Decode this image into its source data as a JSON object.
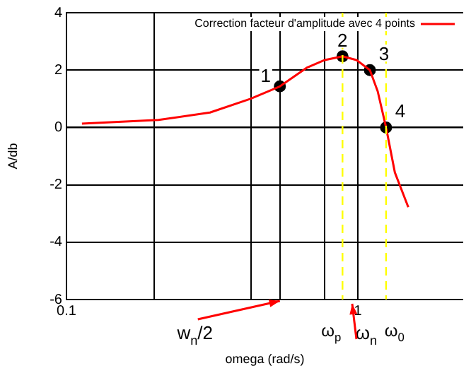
{
  "chart_data": {
    "type": "line",
    "xlabel": "omega (rad/s)",
    "ylabel": "A/db",
    "log": "x",
    "xlim": [
      0.1,
      2.3
    ],
    "xticks": [
      0.1,
      {
        "value": 0.2,
        "label": null
      },
      {
        "value": 0.43,
        "label": null
      },
      {
        "value": 0.54,
        "label": null
      },
      {
        "value": 0.77,
        "label": null
      },
      1
    ],
    "ylim": [
      -6,
      4
    ],
    "yticks": [
      -6,
      -4,
      -2,
      0,
      2,
      4
    ],
    "grid": true,
    "legend": "top right",
    "series": [
      {
        "name": "Correction facteur d'amplitude avec 4 points",
        "color": "#ff0000",
        "marker": "none",
        "x": [
          0.113,
          0.207,
          0.311,
          0.428,
          0.54,
          0.67,
          0.77,
          0.886,
          0.99,
          1.1,
          1.17,
          1.25,
          1.34,
          1.49
        ],
        "values": [
          0.13,
          0.26,
          0.52,
          1.0,
          1.43,
          2.09,
          2.35,
          2.48,
          2.35,
          2.0,
          1.26,
          0,
          -1.57,
          -2.78
        ]
      },
      {
        "type": "scatter",
        "color": "#000000",
        "marker": "circle",
        "x": [
          0.54,
          0.886,
          1.1,
          1.25
        ],
        "values": [
          1.43,
          2.48,
          2.0,
          0
        ]
      }
    ],
    "ref_lines": [
      {
        "axis": "x",
        "value": 0.886,
        "label": "ω$_{p}$",
        "color": "#ffff00",
        "line_style": "dashed"
      },
      {
        "axis": "x",
        "value": 1.25,
        "label": "ω$_{0}$",
        "color": "#ffff00",
        "line_style": "dashed"
      }
    ],
    "annotations": [
      {
        "text": "1",
        "x": 0.54,
        "y": 1.43
      },
      {
        "text": "2",
        "x": 0.886,
        "y": 2.48
      },
      {
        "text": "3",
        "x": 1.1,
        "y": 2.0
      },
      {
        "text": "4",
        "x": 1.25,
        "y": 0
      },
      "w$_{n}$/2",
      "ω$_{n}$"
    ]
  }
}
